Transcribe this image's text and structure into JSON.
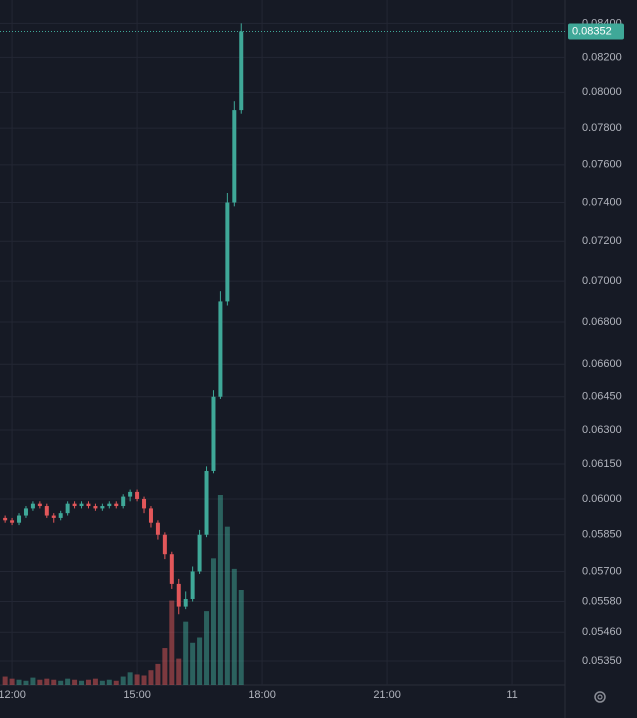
{
  "chart_data": {
    "type": "candlestick",
    "log_scale": true,
    "grid": true,
    "up_color": "#3fa898",
    "down_color": "#e2575a",
    "x": [
      11.8333,
      12.0,
      12.1667,
      12.3333,
      12.5,
      12.6667,
      12.8333,
      13.0,
      13.1667,
      13.3333,
      13.5,
      13.6667,
      13.8333,
      14.0,
      14.1667,
      14.3333,
      14.5,
      14.6667,
      14.8333,
      15.0,
      15.1667,
      15.3333,
      15.5,
      15.6667,
      15.8333,
      16.0,
      16.1667,
      16.3333,
      16.5,
      16.6667,
      16.8333,
      17.0,
      17.1667,
      17.3333,
      17.5
    ],
    "open": [
      0.0592,
      0.0591,
      0.059,
      0.0593,
      0.0596,
      0.0598,
      0.0597,
      0.0593,
      0.0592,
      0.0594,
      0.0598,
      0.0597,
      0.0598,
      0.0597,
      0.0596,
      0.0597,
      0.0598,
      0.0597,
      0.0601,
      0.0603,
      0.06,
      0.0596,
      0.059,
      0.0585,
      0.0577,
      0.0565,
      0.0556,
      0.0559,
      0.057,
      0.0585,
      0.0612,
      0.0645,
      0.069,
      0.074,
      0.079
    ],
    "high": [
      0.0593,
      0.0592,
      0.0594,
      0.0597,
      0.0599,
      0.0599,
      0.0598,
      0.0594,
      0.0595,
      0.0599,
      0.0599,
      0.0599,
      0.0599,
      0.0598,
      0.0598,
      0.0599,
      0.0599,
      0.0602,
      0.0604,
      0.0604,
      0.0601,
      0.0597,
      0.0591,
      0.0586,
      0.0578,
      0.0567,
      0.0562,
      0.0572,
      0.0587,
      0.0614,
      0.0648,
      0.0695,
      0.0745,
      0.0795,
      0.084
    ],
    "low": [
      0.059,
      0.0589,
      0.0589,
      0.0592,
      0.0595,
      0.0596,
      0.0592,
      0.059,
      0.0591,
      0.0593,
      0.0596,
      0.0596,
      0.0596,
      0.0595,
      0.0595,
      0.0596,
      0.0596,
      0.0596,
      0.0599,
      0.0599,
      0.0594,
      0.0588,
      0.0583,
      0.0575,
      0.0563,
      0.0553,
      0.0555,
      0.0558,
      0.0569,
      0.0584,
      0.0611,
      0.0644,
      0.0688,
      0.0738,
      0.0788
    ],
    "close": [
      0.0591,
      0.059,
      0.0593,
      0.0596,
      0.0598,
      0.0597,
      0.0593,
      0.0592,
      0.0594,
      0.0598,
      0.0597,
      0.0598,
      0.0597,
      0.0596,
      0.0597,
      0.0598,
      0.0597,
      0.0601,
      0.0603,
      0.06,
      0.0596,
      0.059,
      0.0585,
      0.0577,
      0.0565,
      0.0556,
      0.0559,
      0.057,
      0.0585,
      0.0612,
      0.0645,
      0.069,
      0.074,
      0.079,
      0.08352
    ],
    "volume": [
      8,
      6,
      5,
      4,
      7,
      5,
      6,
      5,
      4,
      6,
      5,
      4,
      5,
      6,
      4,
      5,
      4,
      8,
      12,
      10,
      9,
      14,
      20,
      35,
      80,
      25,
      60,
      40,
      45,
      70,
      120,
      180,
      150,
      110,
      90
    ],
    "last_price": 0.08352,
    "xlim": [
      11.71,
      25.27
    ],
    "xticks": [
      {
        "value": 12,
        "label": "12:00"
      },
      {
        "value": 15,
        "label": "15:00"
      },
      {
        "value": 18,
        "label": "18:00"
      },
      {
        "value": 21,
        "label": "21:00"
      },
      {
        "value": 24,
        "label": "11"
      }
    ],
    "ylim": [
      0.0526,
      0.0854
    ],
    "yticks": [
      {
        "value": 0.0535,
        "label": "0.05350"
      },
      {
        "value": 0.0546,
        "label": "0.05460"
      },
      {
        "value": 0.0558,
        "label": "0.05580"
      },
      {
        "value": 0.057,
        "label": "0.05700"
      },
      {
        "value": 0.0585,
        "label": "0.05850"
      },
      {
        "value": 0.06,
        "label": "0.06000"
      },
      {
        "value": 0.0615,
        "label": "0.06150"
      },
      {
        "value": 0.063,
        "label": "0.06300"
      },
      {
        "value": 0.0645,
        "label": "0.06450"
      },
      {
        "value": 0.066,
        "label": "0.06600"
      },
      {
        "value": 0.068,
        "label": "0.06800"
      },
      {
        "value": 0.07,
        "label": "0.07000"
      },
      {
        "value": 0.072,
        "label": "0.07200"
      },
      {
        "value": 0.074,
        "label": "0.07400"
      },
      {
        "value": 0.076,
        "label": "0.07600"
      },
      {
        "value": 0.078,
        "label": "0.07800"
      },
      {
        "value": 0.08,
        "label": "0.08000"
      },
      {
        "value": 0.082,
        "label": "0.08200"
      },
      {
        "value": 0.084,
        "label": "0.08400"
      }
    ]
  }
}
